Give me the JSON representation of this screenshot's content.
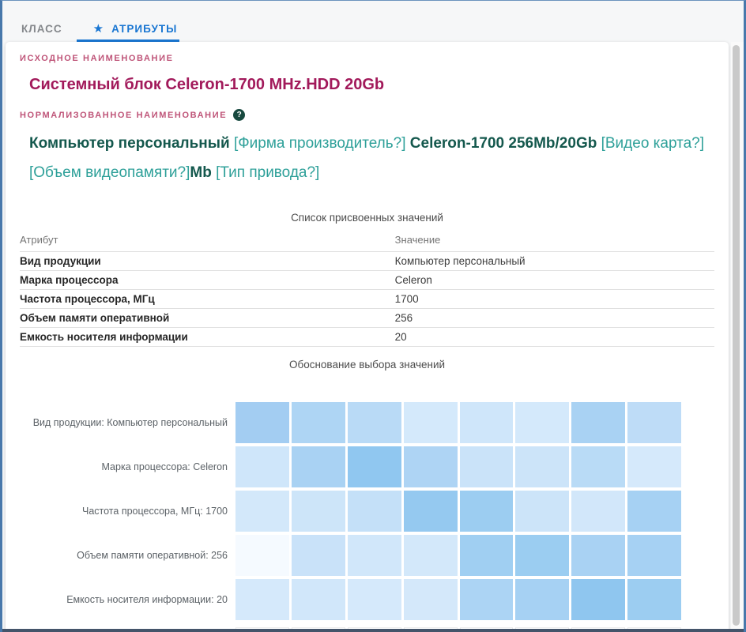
{
  "tabs": [
    {
      "label": "КЛАСС",
      "active": false
    },
    {
      "label": "АТРИБУТЫ",
      "active": true,
      "icon": "star-icon"
    }
  ],
  "source_name": {
    "label": "ИСХОДНОЕ НАИМЕНОВАНИЕ",
    "value": "Системный блок Celeron-1700 MHz.HDD 20Gb"
  },
  "normalized_name": {
    "label": "НОРМАЛИЗОВАННОЕ НАИМЕНОВАНИЕ",
    "help_icon": "?",
    "segments": [
      {
        "text": "Компьютер персональный",
        "style": "strong"
      },
      {
        "text": " [Фирма производитель?] ",
        "style": "light"
      },
      {
        "text": "Celeron-1700 256Mb/20Gb",
        "style": "strong"
      },
      {
        "text": " [Видео карта?] [Объем видеопамяти?]",
        "style": "light"
      },
      {
        "text": "Mb",
        "style": "strong"
      },
      {
        "text": " [Тип привода?]",
        "style": "light"
      }
    ]
  },
  "assigned_values": {
    "title": "Список присвоенных значений",
    "columns": [
      "Атрибут",
      "Значение"
    ],
    "rows": [
      [
        "Вид продукции",
        "Компьютер персональный"
      ],
      [
        "Марка процессора",
        "Celeron"
      ],
      [
        "Частота процессора, МГц",
        "1700"
      ],
      [
        "Объем памяти оперативной",
        "256"
      ],
      [
        "Емкость носителя информации",
        "20"
      ]
    ]
  },
  "justification": {
    "title": "Обоснование выбора значений"
  },
  "chart_data": {
    "type": "heatmap",
    "title": "Обоснование выбора значений",
    "columns": 8,
    "column_labels": [],
    "legend": "none",
    "palette": {
      "low": "#f5faff",
      "high": "#8fc6ef"
    },
    "rows": [
      {
        "label": "Вид продукции: Компьютер персональный",
        "colors": [
          "#a3cdf2",
          "#aed5f4",
          "#b9daf6",
          "#d4e9fb",
          "#cfe6fa",
          "#d4e9fb",
          "#a9d2f3",
          "#bedcf7"
        ],
        "intensity": [
          0.62,
          0.55,
          0.48,
          0.28,
          0.33,
          0.28,
          0.58,
          0.45
        ]
      },
      {
        "label": "Марка процессора: Celeron",
        "colors": [
          "#cfe6fa",
          "#a9d2f3",
          "#90c7f0",
          "#aed4f4",
          "#cae3f9",
          "#cce4f9",
          "#b9dbf6",
          "#d5e9fb"
        ],
        "intensity": [
          0.33,
          0.58,
          0.8,
          0.55,
          0.36,
          0.35,
          0.47,
          0.27
        ]
      },
      {
        "label": "Частота процессора, МГц: 1700",
        "colors": [
          "#d3e8fa",
          "#cde5f9",
          "#c4e0f8",
          "#95c9f0",
          "#9ccdf1",
          "#cce4f9",
          "#d2e7fa",
          "#a6d1f3"
        ],
        "intensity": [
          0.3,
          0.34,
          0.4,
          0.76,
          0.7,
          0.35,
          0.31,
          0.6
        ]
      },
      {
        "label": "Объем памяти оперативной: 256",
        "colors": [
          "#f5faff",
          "#c9e2f9",
          "#d1e7fa",
          "#d3e8fa",
          "#a0cff2",
          "#9bcdf1",
          "#a9d2f3",
          "#a6d1f3"
        ],
        "intensity": [
          0.05,
          0.37,
          0.32,
          0.3,
          0.64,
          0.7,
          0.58,
          0.6
        ]
      },
      {
        "label": "Емкость носителя информации: 20",
        "colors": [
          "#d5e9fb",
          "#d1e7fa",
          "#d5e9fb",
          "#d4e8fa",
          "#acd4f4",
          "#a6d1f3",
          "#8fc6ef",
          "#9ccdf1"
        ],
        "intensity": [
          0.27,
          0.32,
          0.27,
          0.29,
          0.54,
          0.58,
          0.82,
          0.7
        ]
      }
    ]
  },
  "colors": {
    "accent_blue": "#1976d2",
    "inactive_tab": "#85888c",
    "label_pink": "#bf5579",
    "title_magenta": "#a21a5b",
    "teal_strong": "#14584d",
    "teal_light": "#2ea099",
    "help_green": "#17493f",
    "frame_blue": "#4878ab",
    "bottom_bar": "#44546a"
  }
}
